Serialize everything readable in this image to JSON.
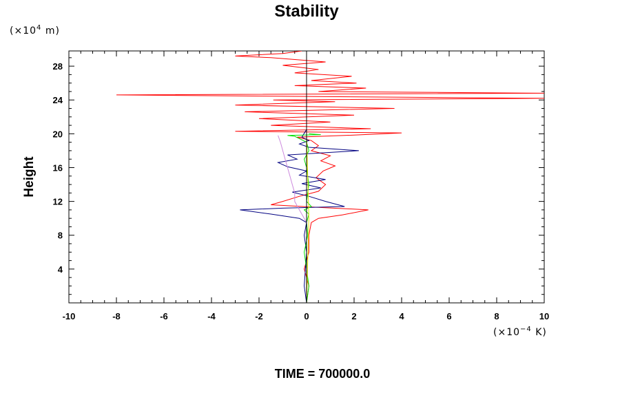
{
  "chart_data": {
    "type": "line",
    "title": "Stability",
    "ylabel": "Height",
    "y_unit": {
      "prefix": "(×10",
      "exp": "4",
      "suffix": " m)"
    },
    "x_unit": {
      "prefix": "(×10",
      "exp": "−4",
      "suffix": " K)"
    },
    "footer": "TIME = 700000.0",
    "xlim": [
      -10,
      10
    ],
    "ylim": [
      0,
      29.8
    ],
    "x_ticks": [
      -10,
      -8,
      -6,
      -4,
      -2,
      0,
      2,
      4,
      6,
      8,
      10
    ],
    "y_ticks": [
      4,
      8,
      12,
      16,
      20,
      24,
      28
    ],
    "grid": false,
    "series": [
      {
        "color": "#ff0000",
        "points": [
          [
            0,
            0
          ],
          [
            0.1,
            2
          ],
          [
            -0.1,
            4
          ],
          [
            0.1,
            6
          ],
          [
            0.1,
            8
          ],
          [
            0.2,
            9.5
          ],
          [
            0.5,
            10
          ],
          [
            1.5,
            10.4
          ],
          [
            2.6,
            11
          ],
          [
            0.5,
            11.3
          ],
          [
            -1.5,
            11.6
          ],
          [
            -1,
            12
          ],
          [
            -0.3,
            12.6
          ],
          [
            0.5,
            13.2
          ],
          [
            0.8,
            14
          ],
          [
            0.4,
            14.8
          ],
          [
            0.7,
            15.6
          ],
          [
            1.2,
            16.2
          ],
          [
            0.6,
            16.8
          ],
          [
            1,
            17.4
          ],
          [
            0.2,
            18
          ],
          [
            0.5,
            18.6
          ],
          [
            0.2,
            19.2
          ],
          [
            -0.4,
            19.6
          ],
          [
            1.6,
            19.8
          ],
          [
            4,
            20.1
          ],
          [
            -3,
            20.3
          ],
          [
            2.7,
            20.6
          ],
          [
            -1.5,
            21
          ],
          [
            1,
            21.4
          ],
          [
            -2,
            21.8
          ],
          [
            2,
            22.2
          ],
          [
            -2.6,
            22.6
          ],
          [
            3.7,
            23
          ],
          [
            -3,
            23.4
          ],
          [
            1.2,
            23.8
          ],
          [
            -1.4,
            24
          ],
          [
            10,
            24.2
          ],
          [
            -8,
            24.6
          ],
          [
            10,
            24.8
          ],
          [
            0.5,
            25
          ],
          [
            2.5,
            25.4
          ],
          [
            -0.5,
            25.7
          ],
          [
            2.1,
            26
          ],
          [
            0.2,
            26.3
          ],
          [
            1.9,
            26.8
          ],
          [
            -0.5,
            27.2
          ],
          [
            0.5,
            27.6
          ],
          [
            -1,
            28.1
          ],
          [
            0.8,
            28.5
          ],
          [
            -1.5,
            29
          ],
          [
            -3,
            29.2
          ],
          [
            -1,
            29.5
          ],
          [
            -0.2,
            29.8
          ]
        ]
      },
      {
        "color": "#000080",
        "points": [
          [
            0,
            0
          ],
          [
            -0.1,
            2
          ],
          [
            -0.05,
            4
          ],
          [
            0,
            6
          ],
          [
            -0.1,
            8
          ],
          [
            0,
            9.5
          ],
          [
            -0.3,
            10
          ],
          [
            -1.5,
            10.5
          ],
          [
            -2.8,
            11
          ],
          [
            -1,
            11.2
          ],
          [
            1.6,
            11.4
          ],
          [
            0.8,
            12
          ],
          [
            0.1,
            12.6
          ],
          [
            -0.6,
            13.1
          ],
          [
            0.6,
            13.6
          ],
          [
            -0.2,
            14.1
          ],
          [
            0.8,
            14.6
          ],
          [
            -0.3,
            15.1
          ],
          [
            0,
            15.6
          ],
          [
            -0.8,
            16.1
          ],
          [
            -1.2,
            16.6
          ],
          [
            -0.4,
            17
          ],
          [
            -0.8,
            17.5
          ],
          [
            2.2,
            18
          ],
          [
            0.1,
            18.4
          ],
          [
            -0.3,
            18.8
          ],
          [
            0.1,
            19.2
          ],
          [
            -0.2,
            19.6
          ],
          [
            0,
            20.5
          ]
        ]
      },
      {
        "color": "#00e000",
        "points": [
          [
            0,
            0
          ],
          [
            0.1,
            2
          ],
          [
            0,
            4
          ],
          [
            -0.1,
            6
          ],
          [
            0.05,
            8
          ],
          [
            0,
            9.5
          ],
          [
            0.1,
            10.5
          ],
          [
            -0.1,
            11
          ],
          [
            0.2,
            11.4
          ],
          [
            0,
            12
          ],
          [
            0.1,
            14
          ],
          [
            0,
            16
          ],
          [
            -0.1,
            17
          ],
          [
            0.1,
            18
          ],
          [
            0,
            19
          ],
          [
            -0.5,
            19.7
          ],
          [
            -0.8,
            19.8
          ],
          [
            0.6,
            19.9
          ],
          [
            0.1,
            20
          ]
        ]
      },
      {
        "color": "#cc88dd",
        "points": [
          [
            0,
            0
          ],
          [
            0,
            9.5
          ],
          [
            -0.1,
            10
          ],
          [
            -0.3,
            11
          ],
          [
            -0.5,
            12
          ],
          [
            -0.5,
            13
          ],
          [
            -0.6,
            14
          ],
          [
            -0.7,
            15
          ],
          [
            -0.8,
            16
          ],
          [
            -0.9,
            17
          ],
          [
            -1,
            18
          ],
          [
            -1.1,
            19
          ],
          [
            -1.2,
            19.8
          ]
        ]
      },
      {
        "color": "#e0e000",
        "points": [
          [
            0,
            0
          ],
          [
            0.05,
            5
          ],
          [
            0.1,
            10
          ],
          [
            0.05,
            15
          ],
          [
            0,
            20
          ]
        ]
      },
      {
        "color": "#000000",
        "points": [
          [
            0,
            0
          ],
          [
            0,
            29.8
          ]
        ]
      }
    ]
  }
}
